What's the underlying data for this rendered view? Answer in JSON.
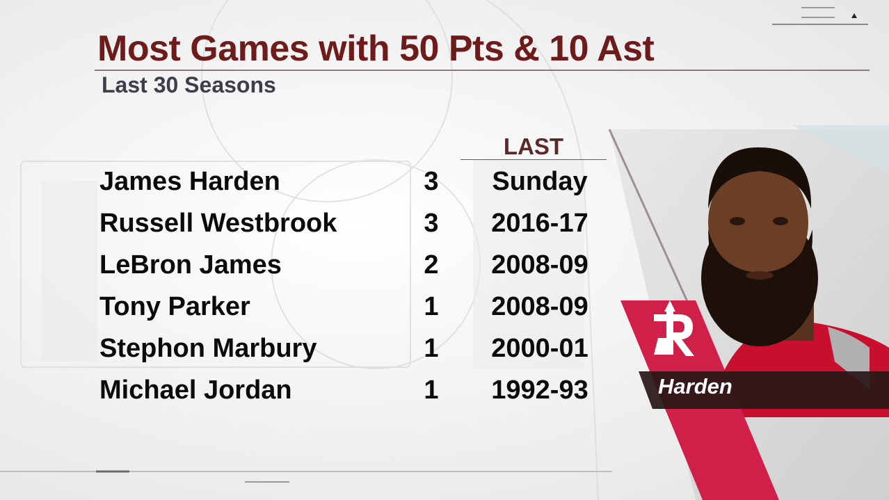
{
  "title": "Most Games with 50 Pts & 10 Ast",
  "subtitle": "Last 30 Seasons",
  "column_header": "LAST",
  "rows": [
    {
      "name": "James Harden",
      "count": "3",
      "last": "Sunday"
    },
    {
      "name": "Russell Westbrook",
      "count": "3",
      "last": "2016-17"
    },
    {
      "name": "LeBron James",
      "count": "2",
      "last": "2008-09"
    },
    {
      "name": "Tony Parker",
      "count": "1",
      "last": "2008-09"
    },
    {
      "name": "Stephon Marbury",
      "count": "1",
      "last": "2000-01"
    },
    {
      "name": "Michael Jordan",
      "count": "1",
      "last": "1992-93"
    }
  ],
  "player_tag": "Harden",
  "colors": {
    "title": "#6e1b1b",
    "team_red": "#ce1141",
    "tag_bar": "#2a1818"
  },
  "icons": [
    "menu-lines-icon",
    "up-arrow-icon",
    "rockets-logo-icon",
    "player-headshot"
  ]
}
